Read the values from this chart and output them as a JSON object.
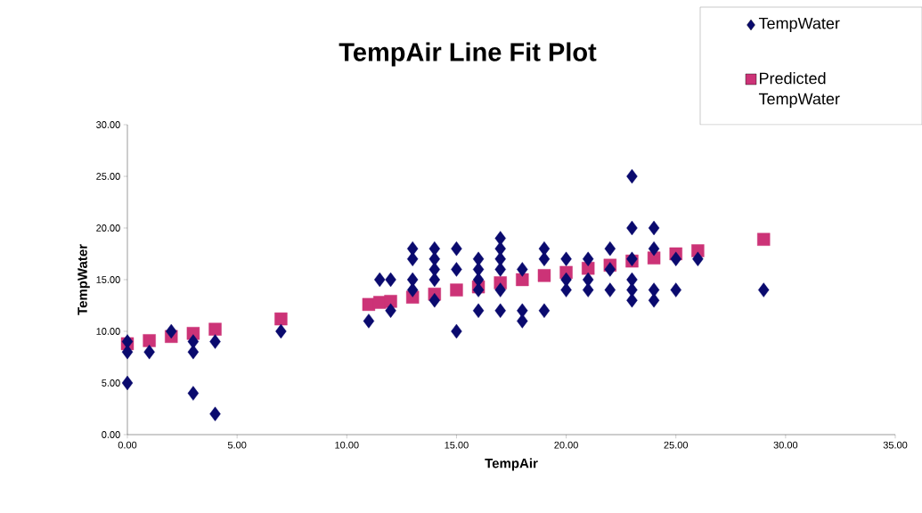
{
  "chart_data": {
    "type": "scatter",
    "title": "TempAir Line Fit  Plot",
    "xlabel": "TempAir",
    "ylabel": "TempWater",
    "xlim": [
      0,
      35
    ],
    "xticks": [
      {
        "value": 0,
        "label": "0.00"
      },
      {
        "value": 5,
        "label": "5.00"
      },
      {
        "value": 10,
        "label": "10.00"
      },
      {
        "value": 15,
        "label": "15.00"
      },
      {
        "value": 20,
        "label": "20.00"
      },
      {
        "value": 25,
        "label": "25.00"
      },
      {
        "value": 30,
        "label": "30.00"
      },
      {
        "value": 35,
        "label": "35.00"
      }
    ],
    "ylim": [
      0,
      30
    ],
    "yticks": [
      {
        "value": 0,
        "label": "0.00"
      },
      {
        "value": 5,
        "label": "5.00"
      },
      {
        "value": 10,
        "label": "10.00"
      },
      {
        "value": 15,
        "label": "15.00"
      },
      {
        "value": 20,
        "label": "20.00"
      },
      {
        "value": 25,
        "label": "25.00"
      },
      {
        "value": 30,
        "label": "30.00"
      }
    ],
    "legend": "top right",
    "grid": false,
    "series": [
      {
        "name": "TempWater",
        "color": "#0a0a6e",
        "marker": "diamond",
        "x": [
          0,
          0,
          0,
          1,
          2,
          3,
          3,
          3,
          4,
          4,
          7,
          11,
          11.5,
          12,
          12,
          13,
          13,
          13,
          13,
          14,
          14,
          14,
          14,
          14,
          15,
          15,
          15,
          16,
          16,
          16,
          16,
          16,
          17,
          17,
          17,
          17,
          17,
          17,
          18,
          18,
          18,
          19,
          19,
          19,
          20,
          20,
          20,
          21,
          21,
          21,
          22,
          22,
          22,
          23,
          23,
          23,
          23,
          23,
          23,
          24,
          24,
          24,
          24,
          25,
          25,
          26,
          29
        ],
        "values": [
          9,
          8,
          5,
          8,
          10,
          9,
          8,
          4,
          9,
          2,
          10,
          11,
          15,
          15,
          12,
          18,
          17,
          15,
          14,
          18,
          17,
          16,
          15,
          13,
          18,
          16,
          10,
          17,
          16,
          15,
          14,
          12,
          19,
          18,
          17,
          16,
          14,
          12,
          16,
          12,
          11,
          18,
          17,
          12,
          17,
          15,
          14,
          17,
          15,
          14,
          18,
          16,
          14,
          25,
          20,
          17,
          15,
          14,
          13,
          20,
          18,
          14,
          13,
          17,
          14,
          17,
          14
        ]
      },
      {
        "name": "Predicted TempWater",
        "color": "#cc3377",
        "marker": "square",
        "x": [
          0,
          1,
          2,
          3,
          4,
          7,
          11,
          11.5,
          12,
          13,
          14,
          15,
          16,
          17,
          18,
          19,
          20,
          21,
          22,
          23,
          24,
          25,
          26,
          29
        ],
        "values": [
          8.8,
          9.1,
          9.5,
          9.8,
          10.2,
          11.2,
          12.6,
          12.8,
          12.9,
          13.3,
          13.6,
          14.0,
          14.3,
          14.7,
          15.0,
          15.4,
          15.7,
          16.1,
          16.4,
          16.8,
          17.1,
          17.5,
          17.8,
          18.9
        ]
      }
    ]
  }
}
